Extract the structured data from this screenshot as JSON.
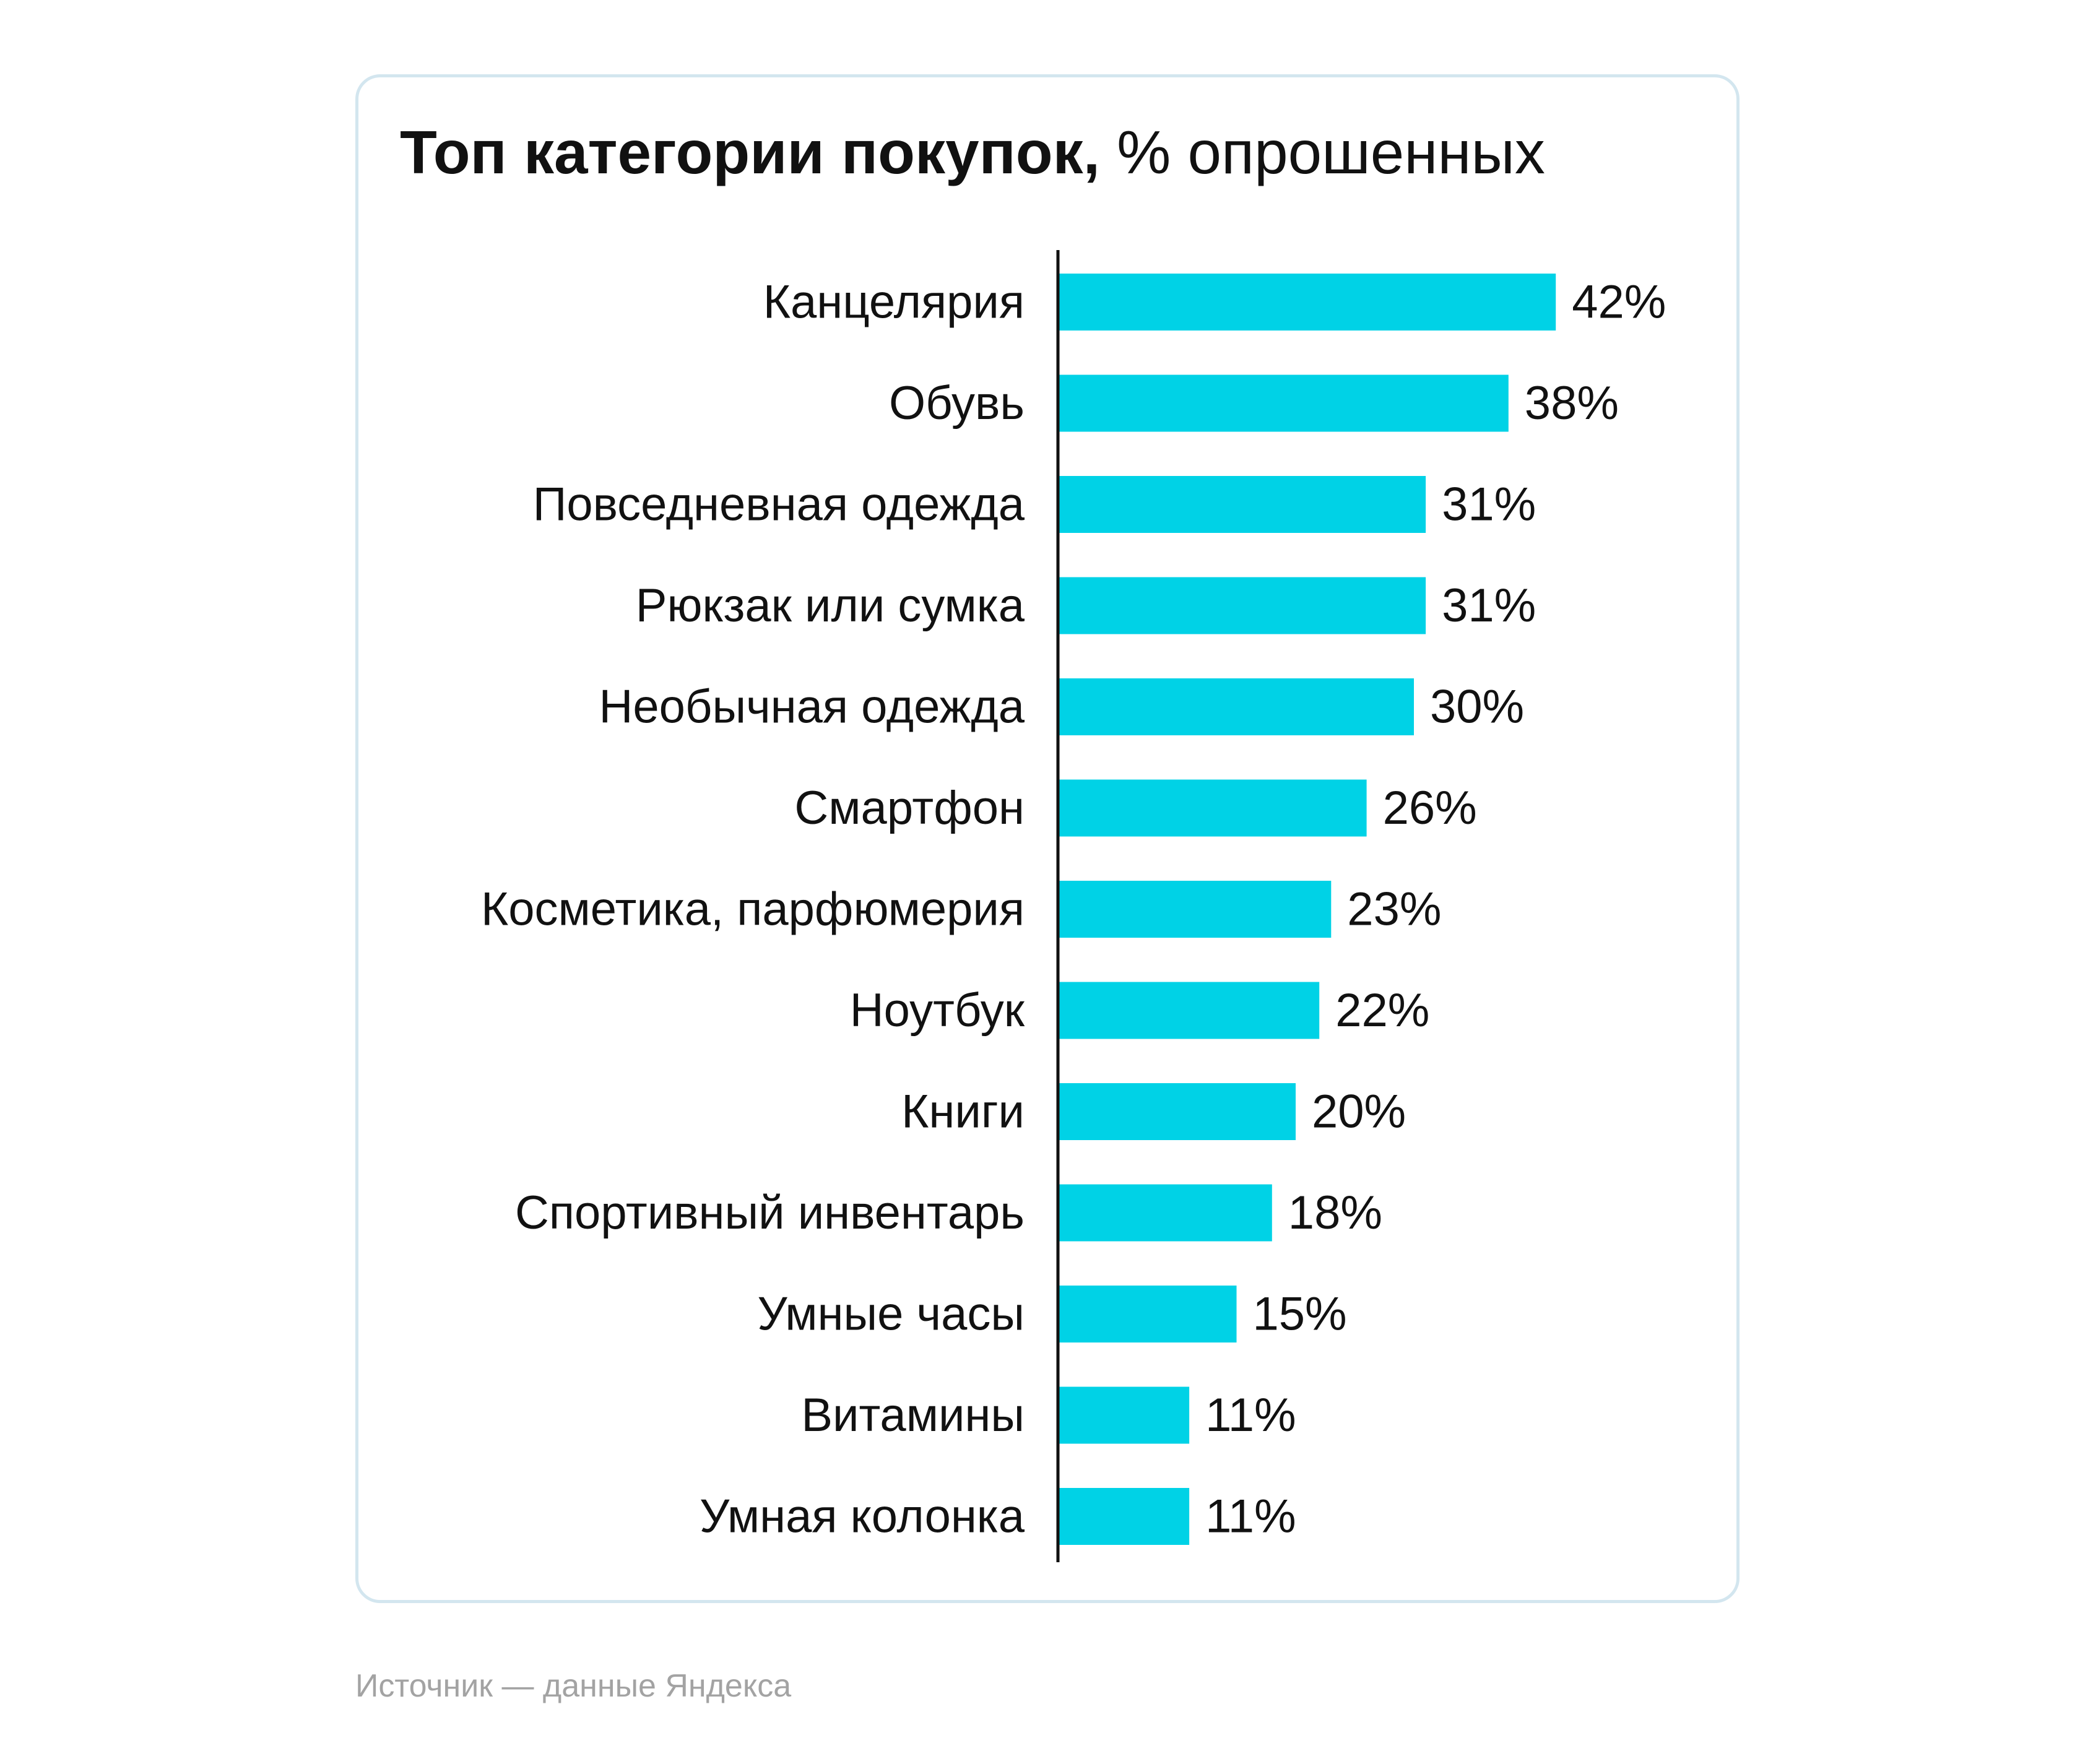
{
  "title_bold": "Топ категории покупок,",
  "title_normal": "% опрошенных",
  "source": "Источник — данные Яндекса",
  "colors": {
    "bar": "#00d2e6",
    "axis": "#111111",
    "text": "#111111",
    "card_border": "#d3e6ef",
    "source_text": "#a3a3a3"
  },
  "chart_data": {
    "type": "bar",
    "orientation": "horizontal",
    "categories": [
      "Канцелярия",
      "Обувь",
      "Повседневная одежда",
      "Рюкзак или сумка",
      "Необычная одежда",
      "Смартфон",
      "Косметика, парфюмерия",
      "Ноутбук",
      "Книги",
      "Спортивный инвентарь",
      "Умные часы",
      "Витамины",
      "Умная колонка"
    ],
    "values": [
      42,
      38,
      31,
      31,
      30,
      26,
      23,
      22,
      20,
      18,
      15,
      11,
      11
    ],
    "value_labels": [
      "42%",
      "38%",
      "31%",
      "31%",
      "30%",
      "26%",
      "23%",
      "22%",
      "20%",
      "18%",
      "15%",
      "11%",
      "11%"
    ],
    "title": "Топ категории покупок, % опрошенных",
    "xlabel": "",
    "ylabel": "",
    "grid": false,
    "legend": "none"
  }
}
